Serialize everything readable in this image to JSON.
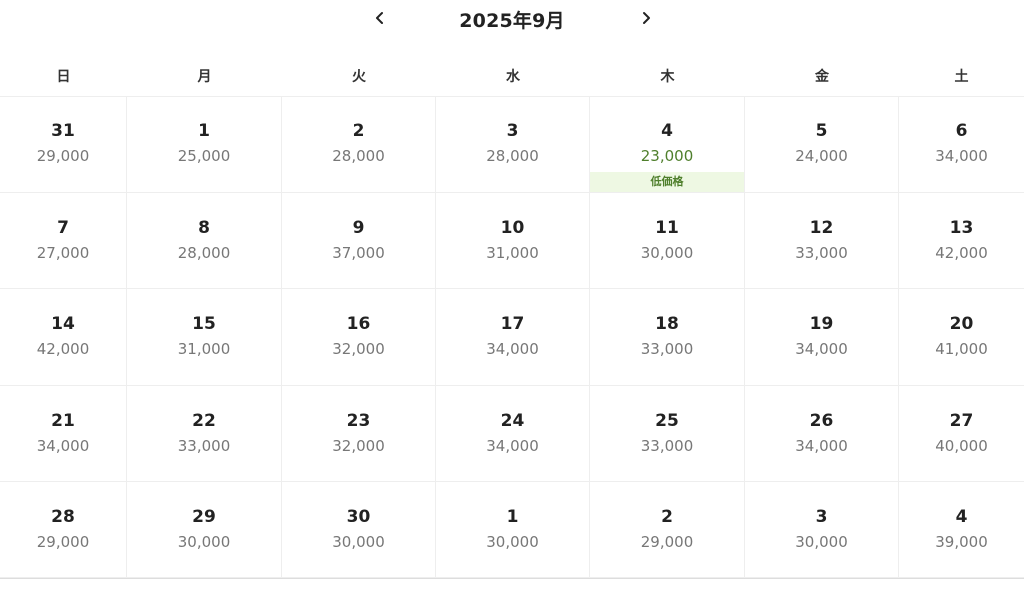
{
  "header": {
    "month_title": "2025年9月",
    "prev_icon": "chevron-left-icon",
    "next_icon": "chevron-right-icon"
  },
  "weekdays": [
    "日",
    "月",
    "火",
    "水",
    "木",
    "金",
    "土"
  ],
  "colors": {
    "low_price_text": "#4f7f2c",
    "low_price_bg": "#eef8e3",
    "price_text": "#777777"
  },
  "low_price_label": "低価格",
  "weeks": [
    [
      {
        "day": "31",
        "price": "29,000"
      },
      {
        "day": "1",
        "price": "25,000"
      },
      {
        "day": "2",
        "price": "28,000"
      },
      {
        "day": "3",
        "price": "28,000"
      },
      {
        "day": "4",
        "price": "23,000",
        "low": true
      },
      {
        "day": "5",
        "price": "24,000"
      },
      {
        "day": "6",
        "price": "34,000"
      }
    ],
    [
      {
        "day": "7",
        "price": "27,000"
      },
      {
        "day": "8",
        "price": "28,000"
      },
      {
        "day": "9",
        "price": "37,000"
      },
      {
        "day": "10",
        "price": "31,000"
      },
      {
        "day": "11",
        "price": "30,000"
      },
      {
        "day": "12",
        "price": "33,000"
      },
      {
        "day": "13",
        "price": "42,000"
      }
    ],
    [
      {
        "day": "14",
        "price": "42,000"
      },
      {
        "day": "15",
        "price": "31,000"
      },
      {
        "day": "16",
        "price": "32,000"
      },
      {
        "day": "17",
        "price": "34,000"
      },
      {
        "day": "18",
        "price": "33,000"
      },
      {
        "day": "19",
        "price": "34,000"
      },
      {
        "day": "20",
        "price": "41,000"
      }
    ],
    [
      {
        "day": "21",
        "price": "34,000"
      },
      {
        "day": "22",
        "price": "33,000"
      },
      {
        "day": "23",
        "price": "32,000"
      },
      {
        "day": "24",
        "price": "34,000"
      },
      {
        "day": "25",
        "price": "33,000"
      },
      {
        "day": "26",
        "price": "34,000"
      },
      {
        "day": "27",
        "price": "40,000"
      }
    ],
    [
      {
        "day": "28",
        "price": "29,000"
      },
      {
        "day": "29",
        "price": "30,000"
      },
      {
        "day": "30",
        "price": "30,000"
      },
      {
        "day": "1",
        "price": "30,000"
      },
      {
        "day": "2",
        "price": "29,000"
      },
      {
        "day": "3",
        "price": "30,000"
      },
      {
        "day": "4",
        "price": "39,000"
      }
    ]
  ]
}
